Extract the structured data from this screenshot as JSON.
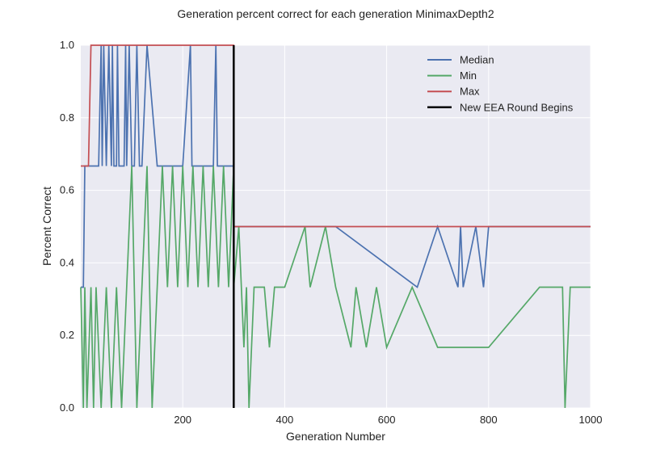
{
  "chart_data": {
    "type": "line",
    "title": "Generation percent correct for each generation MinimaxDepth2",
    "xlabel": "Generation Number",
    "ylabel": "Percent Correct",
    "xlim": [
      0,
      1000
    ],
    "ylim": [
      0.0,
      1.0
    ],
    "xticks": [
      200,
      400,
      600,
      800,
      1000
    ],
    "yticks": [
      0.0,
      0.2,
      0.4,
      0.6,
      0.8,
      1.0
    ],
    "grid": true,
    "legend_position": "top-right",
    "series": [
      {
        "name": "Median",
        "color": "#4c72b0",
        "x": [
          0,
          5,
          8,
          12,
          20,
          30,
          35,
          40,
          42,
          45,
          50,
          55,
          60,
          62,
          65,
          70,
          72,
          75,
          80,
          85,
          88,
          90,
          95,
          100,
          105,
          110,
          115,
          120,
          130,
          150,
          200,
          215,
          218,
          220,
          260,
          265,
          268,
          300,
          300,
          360,
          430,
          500,
          660,
          700,
          740,
          745,
          750,
          775,
          790,
          800,
          1000
        ],
        "y": [
          0.333,
          0.333,
          0.667,
          0.667,
          0.667,
          0.667,
          0.667,
          1.0,
          0.667,
          1.0,
          0.667,
          1.0,
          0.667,
          1.0,
          0.667,
          0.667,
          1.0,
          0.667,
          0.667,
          0.667,
          1.0,
          0.667,
          1.0,
          0.667,
          0.667,
          1.0,
          0.667,
          0.667,
          1.0,
          0.667,
          0.667,
          1.0,
          0.667,
          0.667,
          0.667,
          1.0,
          0.667,
          0.667,
          0.5,
          0.5,
          0.5,
          0.5,
          0.333,
          0.5,
          0.333,
          0.5,
          0.333,
          0.5,
          0.333,
          0.5,
          0.5
        ]
      },
      {
        "name": "Min",
        "color": "#55a868",
        "x": [
          0,
          5,
          8,
          12,
          20,
          25,
          30,
          40,
          50,
          60,
          70,
          80,
          90,
          100,
          110,
          120,
          130,
          140,
          150,
          160,
          170,
          180,
          190,
          200,
          210,
          220,
          230,
          240,
          250,
          260,
          270,
          280,
          290,
          300,
          300,
          310,
          320,
          325,
          330,
          340,
          360,
          370,
          380,
          400,
          440,
          450,
          480,
          500,
          530,
          540,
          560,
          580,
          600,
          650,
          700,
          800,
          900,
          945,
          950,
          960,
          1000
        ],
        "y": [
          0.333,
          0.0,
          0.333,
          0.0,
          0.333,
          0.0,
          0.333,
          0.0,
          0.333,
          0.0,
          0.333,
          0.0,
          0.333,
          0.667,
          0.0,
          0.333,
          0.667,
          0.0,
          0.333,
          0.667,
          0.333,
          0.667,
          0.333,
          0.667,
          0.333,
          0.667,
          0.333,
          0.667,
          0.333,
          0.667,
          0.333,
          0.667,
          0.333,
          0.667,
          0.333,
          0.5,
          0.167,
          0.333,
          0.0,
          0.333,
          0.333,
          0.167,
          0.333,
          0.333,
          0.5,
          0.333,
          0.5,
          0.333,
          0.167,
          0.333,
          0.167,
          0.333,
          0.167,
          0.333,
          0.167,
          0.167,
          0.333,
          0.333,
          0.0,
          0.333,
          0.333
        ]
      },
      {
        "name": "Max",
        "color": "#c44e52",
        "x": [
          0,
          15,
          20,
          300,
          300,
          1000
        ],
        "y": [
          0.667,
          0.667,
          1.0,
          1.0,
          0.5,
          0.5
        ]
      },
      {
        "name": "New EEA Round Begins",
        "color": "#000000",
        "x": [
          300,
          300
        ],
        "y": [
          0.0,
          1.0
        ]
      }
    ]
  }
}
